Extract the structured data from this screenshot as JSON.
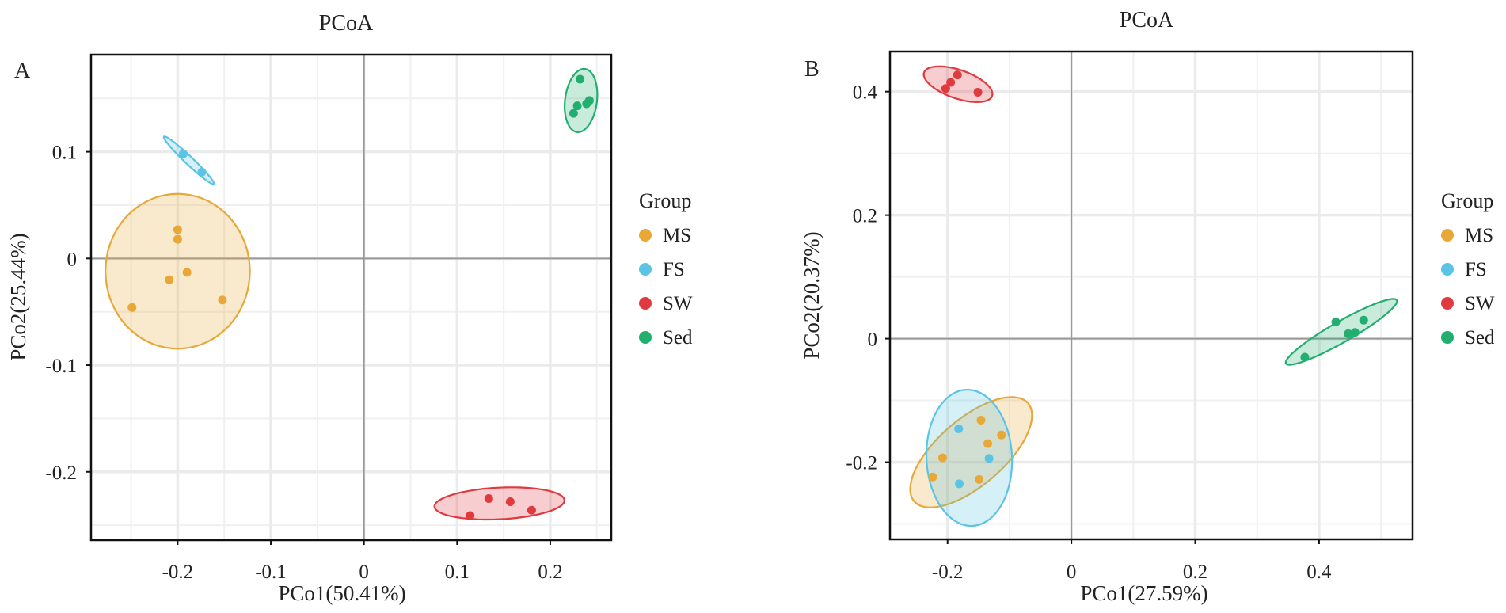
{
  "colors": {
    "MS": "#E8A838",
    "FS": "#5BC4E5",
    "SW": "#E0393E",
    "Sed": "#22AE6F"
  },
  "chart_data": [
    {
      "type": "scatter",
      "panel_label": "A",
      "title": "PCoA",
      "xlabel": "PCo1(50.41%)",
      "ylabel": "PCo2(25.44%)",
      "xlim": [
        -0.293,
        0.2655
      ],
      "ylim": [
        -0.264,
        0.191
      ],
      "xticks": [
        -0.2,
        -0.1,
        0,
        0.1,
        0.2
      ],
      "xtick_labels": [
        "-0.2",
        "-0.1",
        "0",
        "0.1",
        "0.2"
      ],
      "xminor": [
        -0.25,
        -0.15,
        -0.05,
        0.05,
        0.15,
        0.25
      ],
      "yticks": [
        0.1,
        0,
        -0.1,
        -0.2
      ],
      "ytick_labels": [
        "0.1",
        "0",
        "-0.1",
        "-0.2"
      ],
      "yminor": [
        0.15,
        0.05,
        -0.05,
        -0.15,
        -0.25
      ],
      "grid": true,
      "legend": {
        "title": "Group",
        "position": "right",
        "entries": [
          "MS",
          "FS",
          "SW",
          "Sed"
        ]
      },
      "series": [
        {
          "name": "MS",
          "points": [
            [
              -0.2,
              0.027
            ],
            [
              -0.2,
              0.018
            ],
            [
              -0.19,
              -0.013
            ],
            [
              -0.209,
              -0.02
            ],
            [
              -0.152,
              -0.039
            ],
            [
              -0.249,
              -0.046
            ]
          ],
          "ellipse": {
            "center": [
              -0.2,
              -0.012
            ],
            "axis1": [
              0.0775,
              0
            ],
            "axis2": [
              0,
              0.0726
            ]
          }
        },
        {
          "name": "FS",
          "points": [
            [
              -0.194,
              0.098
            ],
            [
              -0.174,
              0.081
            ]
          ],
          "ellipse": {
            "center": [
              -0.188,
              0.092
            ],
            "axis1": [
              0.0268,
              -0.0222
            ],
            "axis2": [
              0.0029,
              0.0027
            ]
          }
        },
        {
          "name": "SW",
          "points": [
            [
              0.114,
              -0.241
            ],
            [
              0.134,
              -0.225
            ],
            [
              0.157,
              -0.228
            ],
            [
              0.18,
              -0.236
            ]
          ],
          "ellipse": {
            "center": [
              0.1455,
              -0.2296
            ],
            "axis1": [
              0.0698,
              0.003
            ],
            "axis2": [
              0.0009,
              -0.0148
            ]
          }
        },
        {
          "name": "Sed",
          "points": [
            [
              0.232,
              0.168
            ],
            [
              0.242,
              0.148
            ],
            [
              0.239,
              0.145
            ],
            [
              0.229,
              0.143
            ],
            [
              0.225,
              0.136
            ]
          ],
          "ellipse": {
            "center": [
              0.233,
              0.148
            ],
            "axis1": [
              0.0043,
              0.0296
            ],
            "axis2": [
              0.017,
              -0.0019
            ]
          }
        }
      ]
    },
    {
      "type": "scatter",
      "panel_label": "B",
      "title": "PCoA",
      "xlabel": "PCo1(27.59%)",
      "ylabel": "PCo2(20.37%)",
      "xlim": [
        -0.293,
        0.551
      ],
      "ylim": [
        -0.325,
        0.465
      ],
      "xticks": [
        -0.2,
        0,
        0.2,
        0.4
      ],
      "xtick_labels": [
        "-0.2",
        "0",
        "0.2",
        "0.4"
      ],
      "xminor": [
        -0.1,
        0.1,
        0.3,
        0.5
      ],
      "yticks": [
        0.4,
        0.2,
        0,
        -0.2
      ],
      "ytick_labels": [
        "0.4",
        "0.2",
        "0",
        "-0.2"
      ],
      "yminor": [
        0.3,
        0.1,
        -0.1,
        -0.3
      ],
      "grid": true,
      "legend": {
        "title": "Group",
        "position": "right",
        "entries": [
          "MS",
          "FS",
          "SW",
          "Sed"
        ]
      },
      "series": [
        {
          "name": "MS",
          "points": [
            [
              -0.146,
              -0.132
            ],
            [
              -0.113,
              -0.156
            ],
            [
              -0.135,
              -0.17
            ],
            [
              -0.208,
              -0.193
            ],
            [
              -0.224,
              -0.224
            ],
            [
              -0.149,
              -0.228
            ]
          ],
          "ellipse": {
            "center": [
              -0.162,
              -0.184
            ],
            "axis1": [
              0.092,
              0.0795
            ],
            "axis2": [
              0.035,
              -0.0408
            ]
          }
        },
        {
          "name": "FS",
          "points": [
            [
              -0.182,
              -0.146
            ],
            [
              -0.133,
              -0.194
            ],
            [
              -0.181,
              -0.235
            ]
          ],
          "ellipse": {
            "center": [
              -0.165,
              -0.193
            ],
            "axis1": [
              0.0051,
              -0.1103
            ],
            "axis2": [
              0.069,
              0.0032
            ]
          }
        },
        {
          "name": "SW",
          "points": [
            [
              -0.203,
              0.405
            ],
            [
              -0.195,
              0.415
            ],
            [
              -0.184,
              0.427
            ],
            [
              -0.151,
              0.399
            ]
          ],
          "ellipse": {
            "center": [
              -0.183,
              0.412
            ],
            "axis1": [
              0.055,
              -0.019
            ],
            "axis2": [
              -0.0075,
              -0.0218
            ]
          }
        },
        {
          "name": "Sed",
          "points": [
            [
              0.377,
              -0.03
            ],
            [
              0.427,
              0.027
            ],
            [
              0.447,
              0.008
            ],
            [
              0.458,
              0.01
            ],
            [
              0.472,
              0.03
            ]
          ],
          "ellipse": {
            "center": [
              0.436,
              0.011
            ],
            "axis1": [
              0.0895,
              0.0513
            ],
            "axis2": [
              0.0083,
              -0.0145
            ]
          }
        }
      ]
    }
  ]
}
